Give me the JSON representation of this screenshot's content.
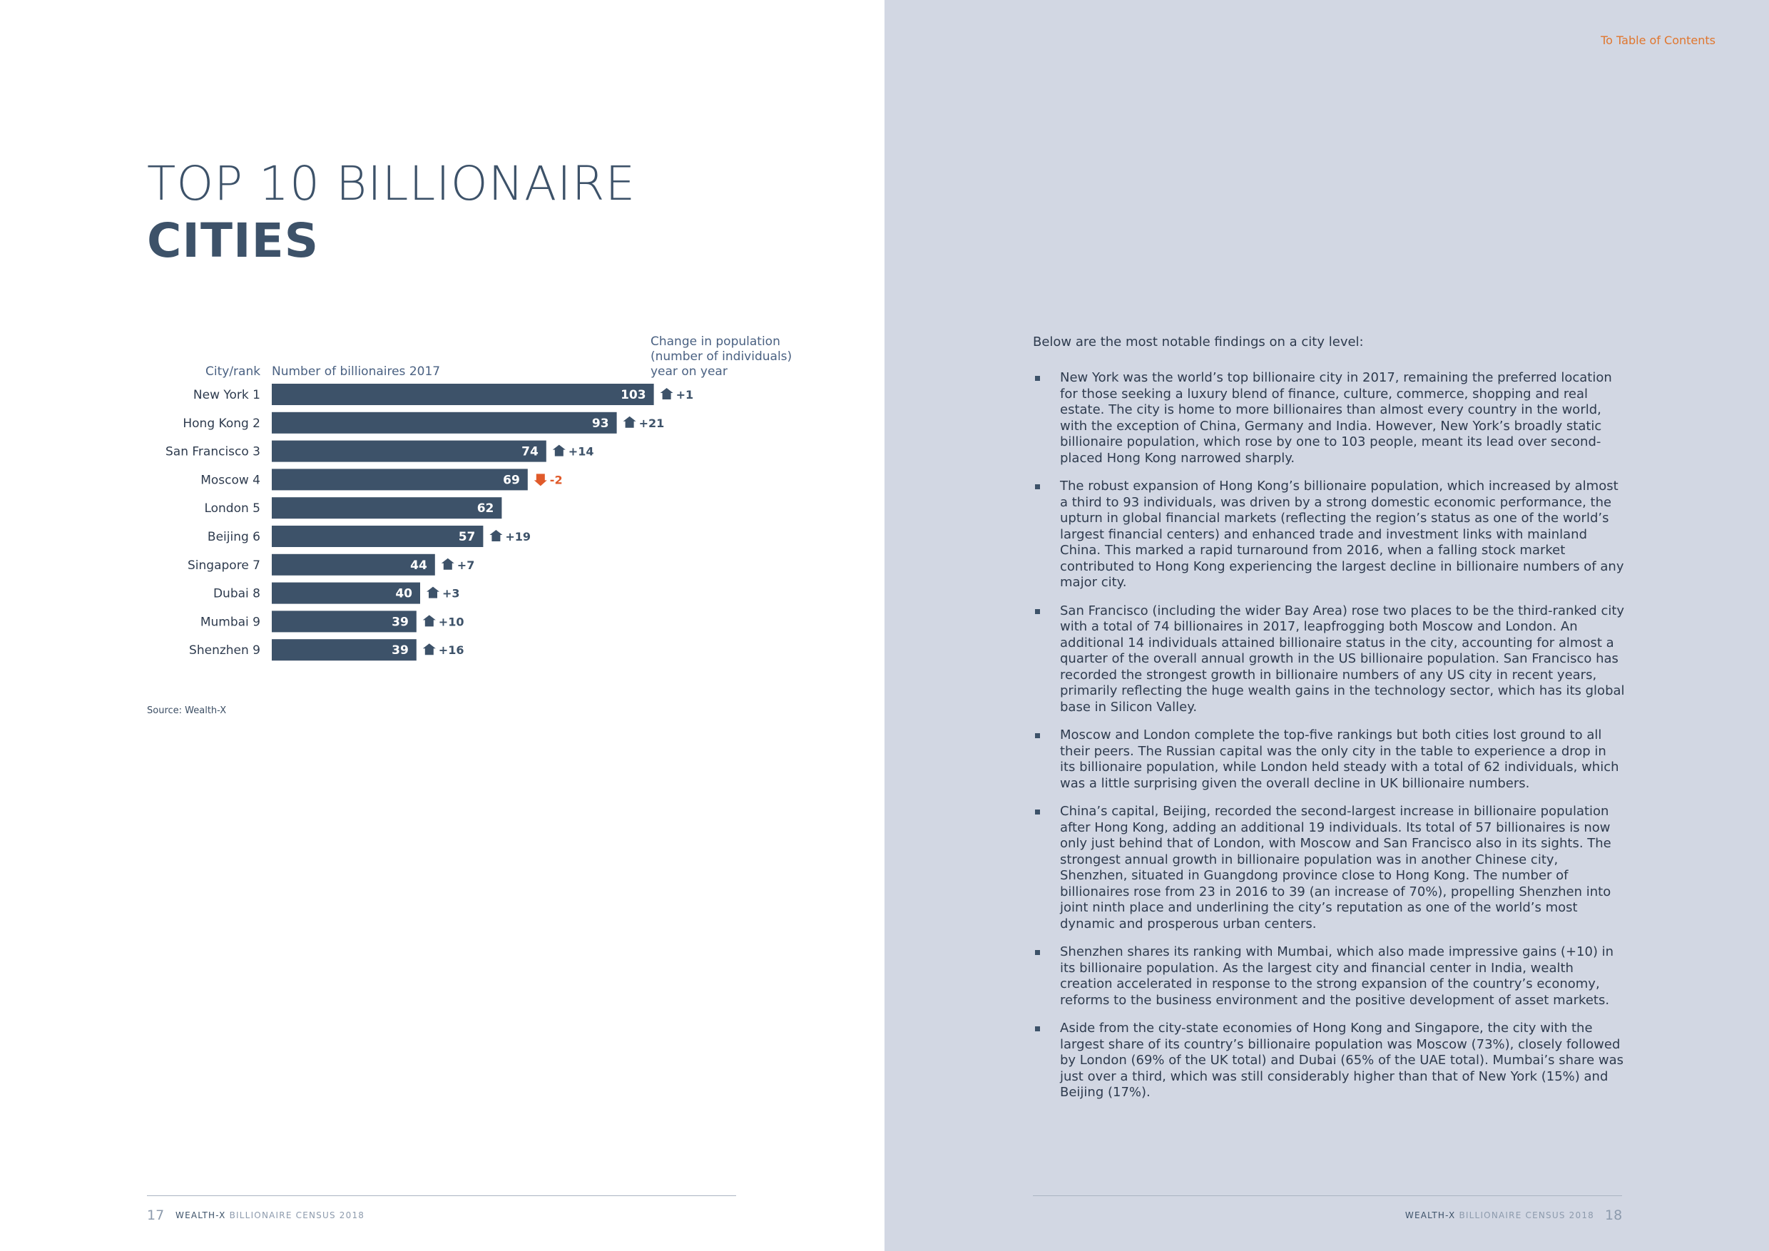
{
  "left_page": {
    "title_line1": "TOP 10 BILLIONAIRE",
    "title_line2": "CITIES",
    "source": "Source: Wealth-X",
    "page_number": "17",
    "footer_brand": "WEALTH-X",
    "footer_rest": " BILLIONAIRE CENSUS 2018"
  },
  "right_page": {
    "toc_link": "To Table of Contents",
    "intro": "Below are the most notable findings on a city level:",
    "findings": [
      "New York was the world’s top billionaire city in 2017, remaining the preferred location for those seeking a luxury blend of finance, culture, commerce, shopping and real estate. The city is home to more billionaires than almost every country in the world, with the exception of China, Germany and India. However, New York’s broadly static billionaire population, which rose by one to 103 people, meant its lead over second-placed Hong Kong narrowed sharply.",
      "The robust expansion of Hong Kong’s billionaire population, which increased by almost a third to 93 individuals, was driven by a strong domestic economic performance, the upturn in global financial markets (reflecting the region’s status as one of the world’s largest financial centers) and enhanced trade and investment links with mainland China. This marked a rapid turnaround from 2016, when a falling stock market contributed to Hong Kong experiencing the largest decline in billionaire numbers of any major city.",
      "San Francisco (including the wider Bay Area) rose two places to be the third-ranked city with a total of 74 billionaires in 2017, leapfrogging both Moscow and London. An additional 14 individuals attained billionaire status in the city, accounting for almost a quarter of the overall annual growth in the US billionaire population. San Francisco has recorded the strongest growth in billionaire numbers of any US city in recent years, primarily reflecting the huge wealth gains in the technology sector, which has its global base in Silicon Valley.",
      "Moscow and London complete the top-five rankings but both cities lost ground to all their peers. The Russian capital was the only city in the table to experience a drop in its billionaire population, while London held steady with a total of 62 individuals, which was a little surprising given the overall decline in UK billionaire numbers.",
      "China’s capital, Beijing, recorded the second-largest increase in billionaire population after Hong Kong, adding an additional 19 individuals. Its total of 57 billionaires is now only just behind that of London, with Moscow and San Francisco also in its sights. The strongest annual growth in billionaire population was in another Chinese city, Shenzhen, situated in Guangdong province close to Hong Kong. The number of billionaires rose from 23 in 2016 to 39 (an increase of 70%), propelling Shenzhen into joint ninth place and underlining the city’s reputation as one of the world’s most dynamic and prosperous urban centers.",
      "Shenzhen shares its ranking with Mumbai, which also made impressive gains (+10) in its billionaire population. As the largest city and financial center in India, wealth creation accelerated in response to the strong expansion of the country’s economy, reforms to the business environment and the positive development of asset markets.",
      "Aside from the city-state economies of Hong Kong and Singapore, the city with the largest share of its country’s billionaire population was Moscow (73%), closely followed by London (69% of the UK total) and Dubai (65% of the UAE total). Mumbai’s share was just over a third, which was still considerably higher than that of New York (15%) and Beijing (17%)."
    ],
    "page_number": "18",
    "footer_brand": "WEALTH-X",
    "footer_rest": " BILLIONAIRE CENSUS 2018"
  },
  "chart_data": {
    "type": "bar",
    "orientation": "horizontal",
    "header_city": "City/rank",
    "header_number": "Number of billionaires 2017",
    "header_change": "Change in population (number of individuals) year on year",
    "categories": [
      "New York 1",
      "Hong Kong 2",
      "San Francisco 3",
      "Moscow 4",
      "London 5",
      "Beijing 6",
      "Singapore 7",
      "Dubai 8",
      "Mumbai 9",
      "Shenzhen 9"
    ],
    "values": [
      103,
      93,
      74,
      69,
      62,
      57,
      44,
      40,
      39,
      39
    ],
    "changes": [
      "+1",
      "+21",
      "+14",
      "-2",
      "",
      "+19",
      "+7",
      "+3",
      "+10",
      "+16"
    ],
    "change_direction": [
      "up",
      "up",
      "up",
      "down",
      "none",
      "up",
      "up",
      "up",
      "up",
      "up"
    ],
    "colors": {
      "bar": "#3d5269",
      "up": "#3d5269",
      "down": "#e05a2a"
    }
  }
}
